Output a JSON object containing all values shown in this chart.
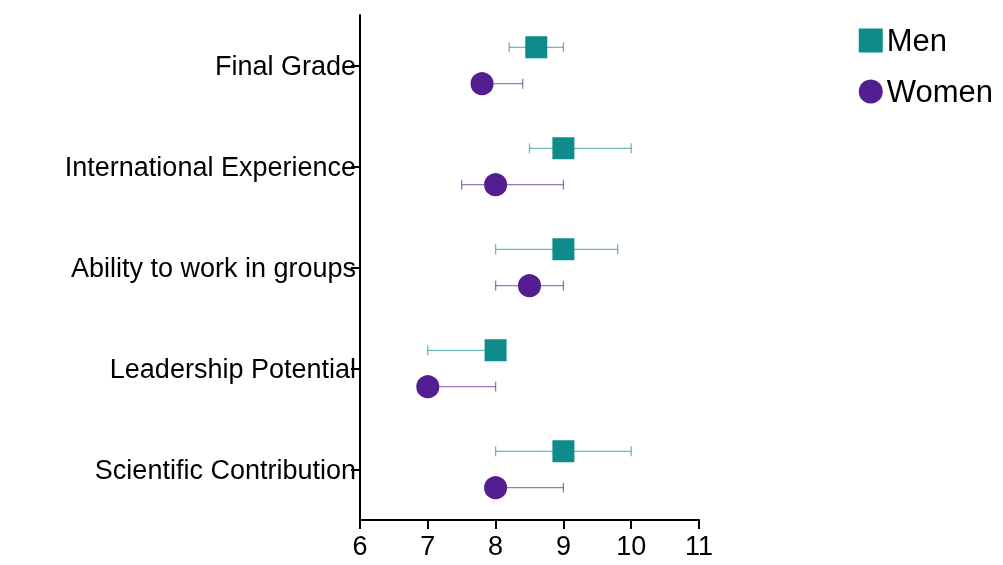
{
  "chart_data": {
    "type": "scatter",
    "orientation": "horizontal",
    "categories": [
      "Final Grade",
      "International Experience",
      "Ability to work in groups",
      "Leadership Potential",
      "Scientific Contribution"
    ],
    "series": [
      {
        "name": "Men",
        "color": "#0e8b8b",
        "marker": "square",
        "values": [
          8.6,
          9.0,
          9.0,
          8.0,
          9.0
        ],
        "errors": [
          [
            8.2,
            9.0
          ],
          [
            8.5,
            10.0
          ],
          [
            8.0,
            9.8
          ],
          [
            7.0,
            8.0
          ],
          [
            8.0,
            10.0
          ]
        ]
      },
      {
        "name": "Women",
        "color": "#531e91",
        "marker": "circle",
        "values": [
          7.8,
          8.0,
          8.5,
          7.0,
          8.0
        ],
        "errors": [
          [
            7.8,
            8.4
          ],
          [
            7.5,
            9.0
          ],
          [
            8.0,
            9.0
          ],
          [
            7.0,
            8.0
          ],
          [
            8.0,
            9.0
          ]
        ]
      }
    ],
    "xlim": [
      6,
      11
    ],
    "xticks": [
      6,
      7,
      8,
      9,
      10,
      11
    ],
    "grid": false,
    "legend": "top right"
  }
}
